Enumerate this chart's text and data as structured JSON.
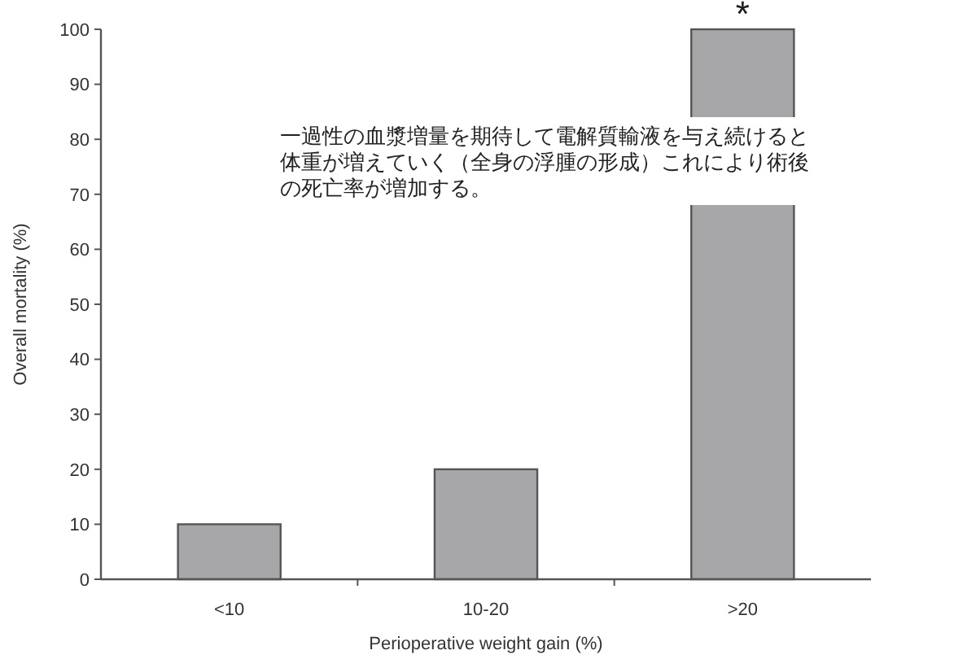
{
  "chart_data": {
    "type": "bar",
    "xlabel": "Perioperative weight gain (%)",
    "ylabel": "Overall mortality (%)",
    "categories": [
      "<10",
      "10-20",
      ">20"
    ],
    "values": [
      10,
      20,
      100
    ],
    "color": "#a7a7aa",
    "ylim": [
      0,
      100
    ],
    "yticks": [
      0,
      10,
      20,
      30,
      40,
      50,
      60,
      70,
      80,
      90,
      100
    ],
    "annotations": [
      {
        "text": "*",
        "x": ">20",
        "y": 100
      },
      "一過性の血漿増量を期待して電解質輸液を与え続けると体重が増えていく（全身の浮腫の形成）これにより術後の死亡率が増加する。"
    ]
  }
}
